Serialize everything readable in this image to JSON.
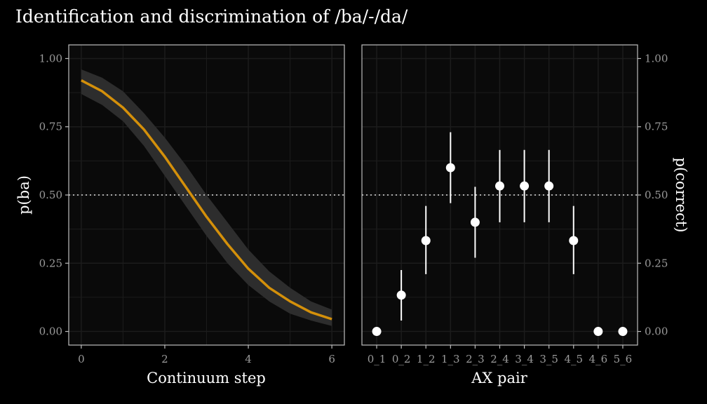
{
  "title": "Identification and discrimination of /ba/-/da/",
  "colors": {
    "background": "#000000",
    "panel": "#0a0a0a",
    "grid": "#1c1c1c",
    "border": "#bdbdbd",
    "curve": "#d4900a",
    "ribbon": "#2d2d2d",
    "points": "#ffffff",
    "reference": "#e0e0e0"
  },
  "chart_data": [
    {
      "type": "line",
      "panel": "identification",
      "xlabel": "Continuum step",
      "ylabel": "p(ba)",
      "xlim": [
        -0.3,
        6.3
      ],
      "ylim": [
        -0.05,
        1.05
      ],
      "x_ticks": [
        0,
        2,
        4,
        6
      ],
      "y_ticks": [
        "0.00",
        "0.25",
        "0.50",
        "0.75",
        "1.00"
      ],
      "reference_line": 0.5,
      "grid": true,
      "series": [
        {
          "x": [
            0,
            0.5,
            1,
            1.5,
            2,
            2.5,
            3,
            3.5,
            4,
            4.5,
            5,
            5.5,
            6
          ],
          "y": [
            0.92,
            0.88,
            0.82,
            0.74,
            0.64,
            0.53,
            0.42,
            0.32,
            0.23,
            0.16,
            0.11,
            0.07,
            0.045
          ],
          "ci_lower": [
            0.87,
            0.83,
            0.77,
            0.68,
            0.57,
            0.46,
            0.35,
            0.25,
            0.17,
            0.11,
            0.065,
            0.04,
            0.02
          ],
          "ci_upper": [
            0.96,
            0.93,
            0.88,
            0.8,
            0.71,
            0.61,
            0.5,
            0.4,
            0.3,
            0.22,
            0.16,
            0.11,
            0.08
          ]
        }
      ]
    },
    {
      "type": "scatter",
      "panel": "discrimination",
      "xlabel": "AX pair",
      "ylabel": "p(correct)",
      "ylim": [
        -0.05,
        1.05
      ],
      "y_ticks": [
        "0.00",
        "0.25",
        "0.50",
        "0.75",
        "1.00"
      ],
      "reference_line": 0.5,
      "grid": true,
      "categories": [
        "0_1",
        "0_2",
        "1_2",
        "1_3",
        "2_3",
        "2_4",
        "3_4",
        "3_5",
        "4_5",
        "4_6",
        "5_6"
      ],
      "values": [
        0.0,
        0.133,
        0.333,
        0.6,
        0.4,
        0.533,
        0.533,
        0.533,
        0.333,
        0.0,
        0.0
      ],
      "error_low": [
        null,
        0.04,
        0.21,
        0.47,
        0.27,
        0.4,
        0.4,
        0.4,
        0.21,
        null,
        null
      ],
      "error_high": [
        null,
        0.225,
        0.46,
        0.73,
        0.53,
        0.665,
        0.665,
        0.665,
        0.46,
        null,
        null
      ]
    }
  ]
}
